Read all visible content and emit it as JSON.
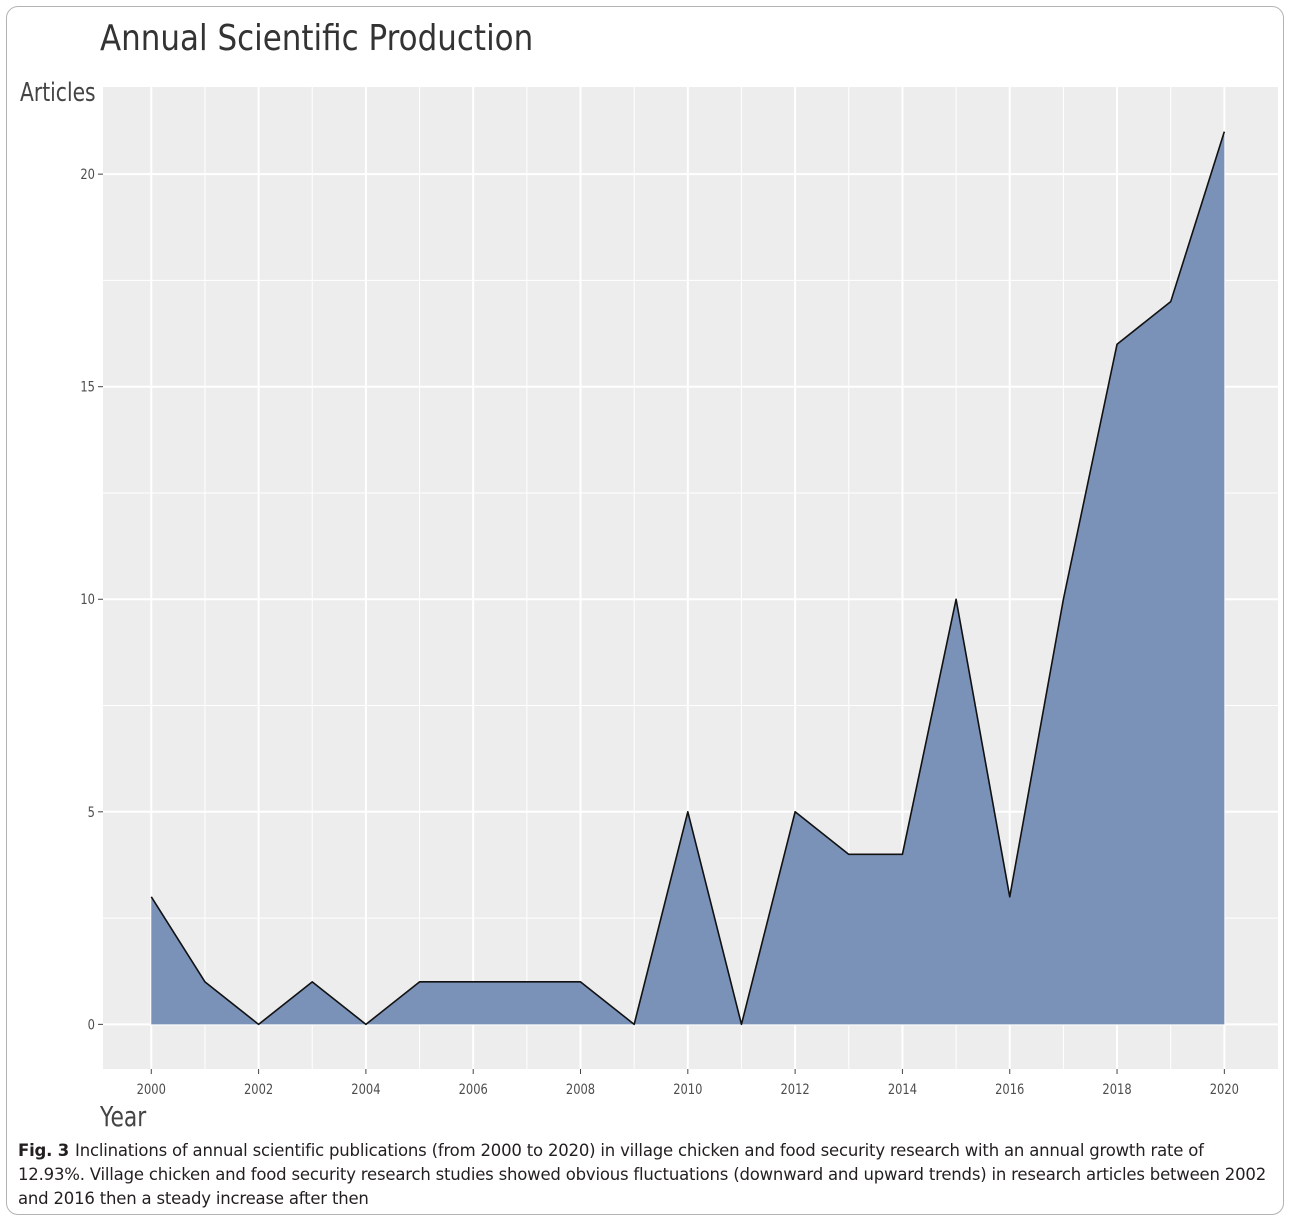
{
  "chart_data": {
    "type": "area",
    "title": "Annual Scientific Production",
    "ylabel": "Articles",
    "xlabel": "Year",
    "x": [
      2000,
      2001,
      2002,
      2003,
      2004,
      2005,
      2006,
      2007,
      2008,
      2009,
      2010,
      2011,
      2012,
      2013,
      2014,
      2015,
      2016,
      2017,
      2018,
      2019,
      2020
    ],
    "y": [
      3,
      1,
      0,
      1,
      0,
      1,
      1,
      1,
      1,
      0,
      5,
      0,
      5,
      4,
      4,
      10,
      3,
      10,
      16,
      17,
      21
    ],
    "xlim": [
      1999.1,
      2021.0
    ],
    "ylim": [
      -1.05,
      22.05
    ],
    "x_ticks": [
      2000,
      2002,
      2004,
      2006,
      2008,
      2010,
      2012,
      2014,
      2016,
      2018,
      2020
    ],
    "y_ticks": [
      0,
      5,
      10,
      15,
      20
    ],
    "grid": true,
    "colors": {
      "fill": "#7a91b8",
      "line": "#111111",
      "panel": "#ededed",
      "grid": "#ffffff"
    }
  },
  "caption": {
    "label": "Fig. 3",
    "text": "Inclinations of annual scientific publications (from 2000 to 2020) in village chicken and food security research with an annual growth rate of 12.93%. Village chicken and food security research studies showed obvious fluctuations (downward and upward trends) in research articles between 2002 and 2016 then a steady increase after then"
  }
}
